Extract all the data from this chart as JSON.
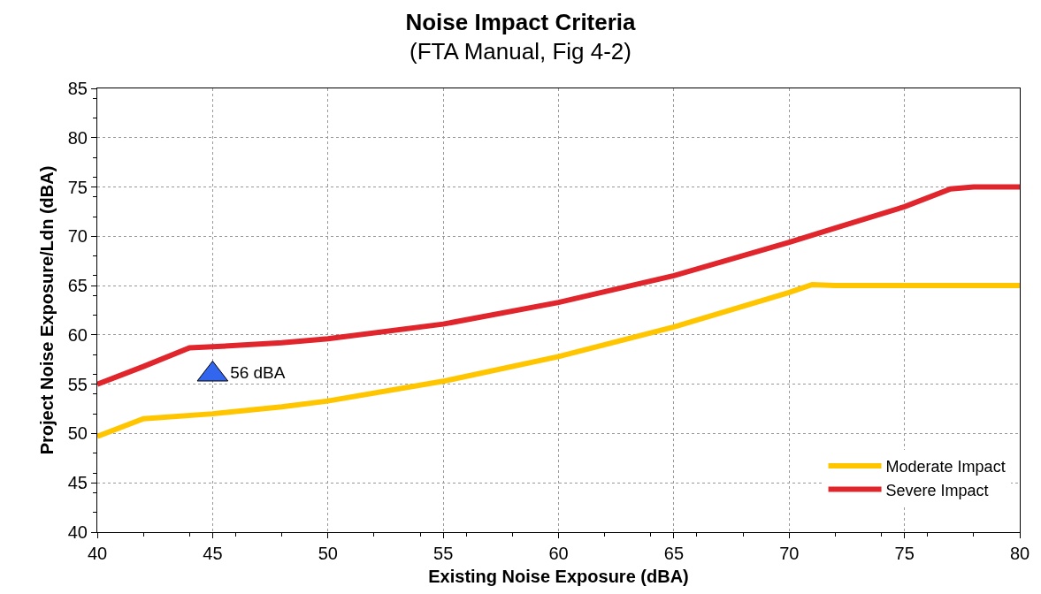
{
  "chart_data": {
    "type": "line",
    "title": "Noise Impact Criteria",
    "subtitle": "(FTA Manual, Fig 4-2)",
    "xlabel": "Existing Noise Exposure (dBA)",
    "ylabel": "Project Noise Exposure/Ldn (dBA)",
    "xlim": [
      40,
      80
    ],
    "xticks": [
      40,
      45,
      50,
      55,
      60,
      65,
      70,
      75,
      80
    ],
    "ylim": [
      40,
      85
    ],
    "yticks": [
      40,
      45,
      50,
      55,
      60,
      65,
      70,
      75,
      80,
      85
    ],
    "grid": true,
    "legend": "bottom right",
    "marker": "none",
    "line_style": "solid",
    "series": [
      {
        "name": "Moderate Impact",
        "color": "#ffc600",
        "x": [
          40,
          42,
          45,
          48,
          50,
          55,
          60,
          65,
          70,
          71,
          72,
          80
        ],
        "values": [
          49.7,
          51.5,
          52.0,
          52.7,
          53.3,
          55.3,
          57.8,
          60.8,
          64.3,
          65.1,
          65.0,
          65.0
        ]
      },
      {
        "name": "Severe Impact",
        "color": "#e0262c",
        "x": [
          40,
          42,
          44,
          45,
          48,
          50,
          55,
          60,
          65,
          70,
          75,
          77,
          78,
          80
        ],
        "values": [
          55.0,
          56.8,
          58.7,
          58.8,
          59.2,
          59.6,
          61.1,
          63.3,
          66.0,
          69.4,
          73.0,
          74.8,
          75.0,
          75.0
        ]
      },
      {
        "type": "scatter",
        "marker": "triangle",
        "color": "#3366ee",
        "x": [
          45
        ],
        "values": [
          56
        ],
        "value_labels": [
          "56 dBA"
        ]
      }
    ]
  }
}
